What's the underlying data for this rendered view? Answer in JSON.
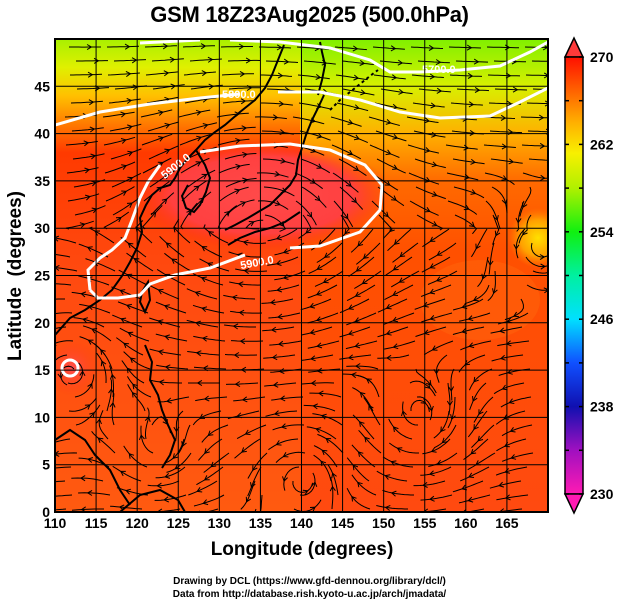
{
  "title": "GSM 18Z23Aug2025 (500.0hPa)",
  "chart_data": {
    "type": "heatmap",
    "title": "GSM 18Z23Aug2025 (500.0hPa)",
    "xlabel": "Longitude (degrees)",
    "ylabel": "Latitude  (degrees)",
    "xlim": [
      110,
      170
    ],
    "ylim": [
      0,
      50
    ],
    "x_ticks": [
      110,
      115,
      120,
      125,
      130,
      135,
      140,
      145,
      150,
      155,
      160,
      165
    ],
    "y_ticks": [
      0,
      5,
      10,
      15,
      20,
      25,
      30,
      35,
      40,
      45
    ],
    "grid": true,
    "colorbar": {
      "position": "right",
      "min": 230,
      "max": 270,
      "ticks": [
        230,
        238,
        246,
        254,
        262,
        270
      ],
      "colors": [
        "#ff1ab3",
        "#8a10c0",
        "#1010d0",
        "#1060ff",
        "#00d8ff",
        "#00f080",
        "#10f010",
        "#b0f010",
        "#f0f000",
        "#ffb000",
        "#ff5a00",
        "#ff1000"
      ]
    },
    "contours": [
      {
        "label": "5700.0",
        "value": 5700
      },
      {
        "label": "5800.0",
        "value": 5800
      },
      {
        "label": "5900.0",
        "value": 5900
      },
      {
        "label": "5900.0",
        "value": 5900
      }
    ]
  },
  "credits": {
    "line1": "Drawing by DCL (https://www.gfd-dennou.org/library/dcl/)",
    "line2": "Data from http://database.rish.kyoto-u.ac.jp/arch/jmadata/"
  }
}
